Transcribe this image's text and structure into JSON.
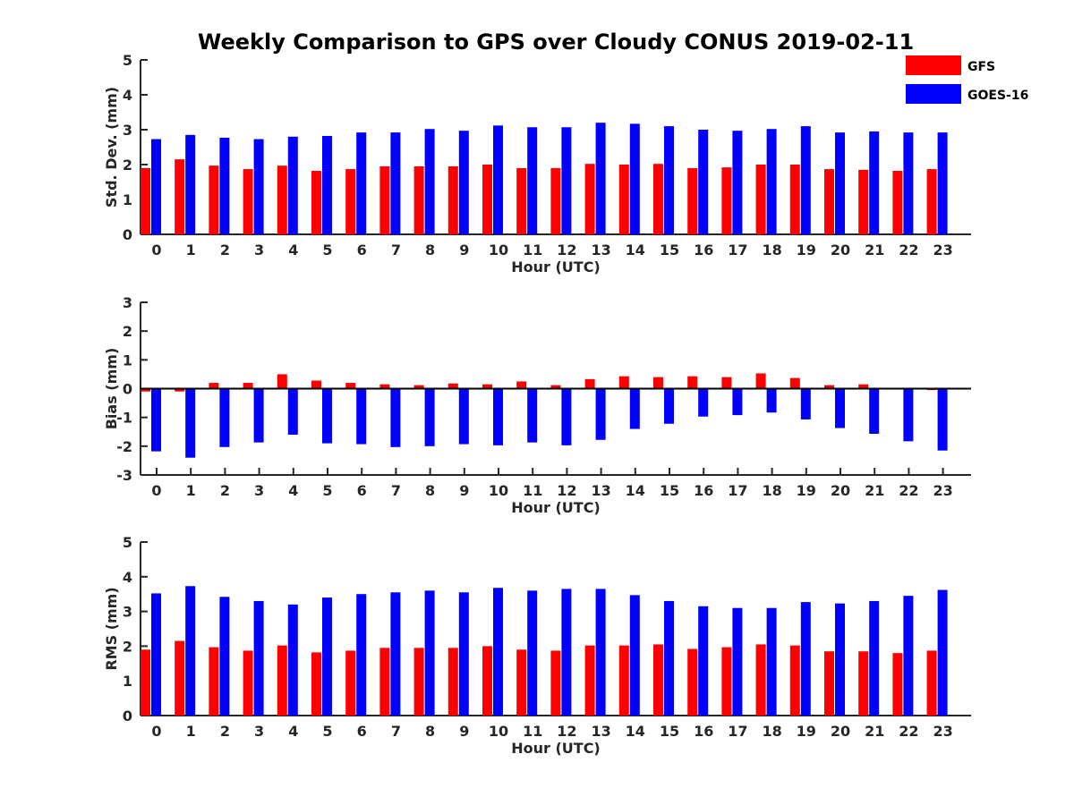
{
  "chart_data": {
    "type": "bar",
    "title": "Weekly Comparison to GPS over Cloudy CONUS 2019-02-11",
    "colors": {
      "GFS": "#ff0000",
      "GOES-16": "#0000ff"
    },
    "legend": {
      "placement": "top-right",
      "entries": [
        "GFS",
        "GOES-16"
      ]
    },
    "panels": [
      {
        "id": "std",
        "ylabel": "Std. Dev. (mm)",
        "xlabel": "Hour (UTC)",
        "ylim": [
          0,
          5
        ],
        "yticks": [
          0,
          1,
          2,
          3,
          4,
          5
        ],
        "categories": [
          "0",
          "1",
          "2",
          "3",
          "4",
          "5",
          "6",
          "7",
          "8",
          "9",
          "10",
          "11",
          "12",
          "13",
          "14",
          "15",
          "16",
          "17",
          "18",
          "19",
          "20",
          "21",
          "22",
          "23"
        ],
        "series": [
          {
            "name": "GFS",
            "values": [
              1.9,
              2.15,
              1.97,
              1.87,
              1.97,
              1.82,
              1.87,
              1.95,
              1.95,
              1.95,
              2.0,
              1.9,
              1.9,
              2.02,
              2.0,
              2.02,
              1.9,
              1.92,
              2.0,
              2.0,
              1.87,
              1.85,
              1.82,
              1.87
            ]
          },
          {
            "name": "GOES-16",
            "values": [
              2.73,
              2.85,
              2.77,
              2.73,
              2.8,
              2.82,
              2.92,
              2.92,
              3.02,
              2.97,
              3.12,
              3.07,
              3.07,
              3.2,
              3.17,
              3.1,
              3.0,
              2.97,
              3.02,
              3.1,
              2.92,
              2.95,
              2.92,
              2.92
            ]
          }
        ]
      },
      {
        "id": "bias",
        "ylabel": "Bias (mm)",
        "xlabel": "Hour (UTC)",
        "ylim": [
          -3,
          3
        ],
        "yticks": [
          -3,
          -2,
          -1,
          0,
          1,
          2,
          3
        ],
        "zero_line": true,
        "categories": [
          "0",
          "1",
          "2",
          "3",
          "4",
          "5",
          "6",
          "7",
          "8",
          "9",
          "10",
          "11",
          "12",
          "13",
          "14",
          "15",
          "16",
          "17",
          "18",
          "19",
          "20",
          "21",
          "22",
          "23"
        ],
        "series": [
          {
            "name": "GFS",
            "values": [
              -0.1,
              -0.1,
              0.2,
              0.2,
              0.5,
              0.28,
              0.2,
              0.15,
              0.12,
              0.18,
              0.15,
              0.25,
              0.12,
              0.33,
              0.43,
              0.4,
              0.43,
              0.4,
              0.53,
              0.37,
              0.12,
              0.15,
              0.0,
              -0.05
            ]
          },
          {
            "name": "GOES-16",
            "values": [
              -2.18,
              -2.4,
              -2.03,
              -1.87,
              -1.6,
              -1.9,
              -1.93,
              -2.03,
              -2.0,
              -1.93,
              -1.97,
              -1.87,
              -1.97,
              -1.78,
              -1.4,
              -1.22,
              -0.97,
              -0.92,
              -0.83,
              -1.07,
              -1.37,
              -1.57,
              -1.83,
              -2.15
            ]
          }
        ]
      },
      {
        "id": "rms",
        "ylabel": "RMS (mm)",
        "xlabel": "Hour (UTC)",
        "ylim": [
          0,
          5
        ],
        "yticks": [
          0,
          1,
          2,
          3,
          4,
          5
        ],
        "categories": [
          "0",
          "1",
          "2",
          "3",
          "4",
          "5",
          "6",
          "7",
          "8",
          "9",
          "10",
          "11",
          "12",
          "13",
          "14",
          "15",
          "16",
          "17",
          "18",
          "19",
          "20",
          "21",
          "22",
          "23"
        ],
        "series": [
          {
            "name": "GFS",
            "values": [
              1.9,
              2.15,
              1.97,
              1.87,
              2.02,
              1.82,
              1.87,
              1.95,
              1.95,
              1.95,
              2.0,
              1.9,
              1.87,
              2.02,
              2.02,
              2.05,
              1.92,
              1.97,
              2.05,
              2.02,
              1.85,
              1.85,
              1.8,
              1.87
            ]
          },
          {
            "name": "GOES-16",
            "values": [
              3.52,
              3.73,
              3.42,
              3.3,
              3.2,
              3.4,
              3.5,
              3.55,
              3.6,
              3.55,
              3.68,
              3.6,
              3.65,
              3.65,
              3.47,
              3.3,
              3.15,
              3.1,
              3.1,
              3.27,
              3.23,
              3.3,
              3.45,
              3.62
            ]
          }
        ]
      }
    ]
  }
}
